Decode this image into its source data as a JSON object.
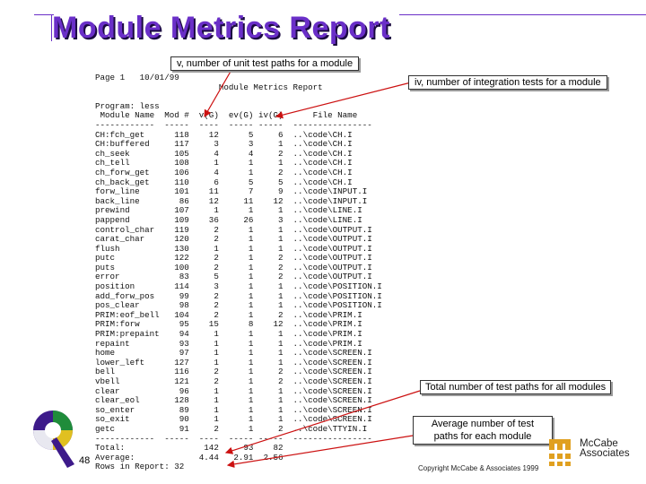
{
  "slide": {
    "title": "Module Metrics Report",
    "page_number": "48",
    "copyright": "Copyright McCabe & Associates 1999",
    "logo_text_1": "McCabe",
    "logo_text_2": "Associates",
    "colors": {
      "title": "#6a2fc8",
      "arrow": "#cc1111"
    }
  },
  "callouts": {
    "v": "v, number of unit test paths for a module",
    "iv": "iv, number of integration tests for a module",
    "total": "Total number of test paths for all modules",
    "average": "Average number of test paths for each module"
  },
  "report": {
    "lines": [
      "Page 1   10/01/99",
      "                         Module Metrics Report",
      "",
      "Program: less",
      " Module Name  Mod #  v(G)  ev(G) iv(G)      File Name",
      "------------  -----  ----  ----- -----  ----------------",
      "CH:fch_get      118    12      5     6  ..\\code\\CH.I",
      "CH:buffered     117     3      3     1  ..\\code\\CH.I",
      "ch_seek         105     4      4     2  ..\\code\\CH.I",
      "ch_tell         108     1      1     1  ..\\code\\CH.I",
      "ch_forw_get     106     4      1     2  ..\\code\\CH.I",
      "ch_back_get     110     6      5     5  ..\\code\\CH.I",
      "forw_line       101    11      7     9  ..\\code\\INPUT.I",
      "back_line        86    12     11    12  ..\\code\\INPUT.I",
      "prewind         107     1      1     1  ..\\code\\LINE.I",
      "pappend         109    36     26     3  ..\\code\\LINE.I",
      "control_char    119     2      1     1  ..\\code\\OUTPUT.I",
      "carat_char      120     2      1     1  ..\\code\\OUTPUT.I",
      "flush           130     1      1     1  ..\\code\\OUTPUT.I",
      "putc            122     2      1     2  ..\\code\\OUTPUT.I",
      "puts            100     2      1     2  ..\\code\\OUTPUT.I",
      "error            83     5      1     2  ..\\code\\OUTPUT.I",
      "position        114     3      1     1  ..\\code\\POSITION.I",
      "add_forw_pos     99     2      1     1  ..\\code\\POSITION.I",
      "pos_clear        98     2      1     1  ..\\code\\POSITION.I",
      "PRIM:eof_bell   104     2      1     2  ..\\code\\PRIM.I",
      "PRIM:forw        95    15      8    12  ..\\code\\PRIM.I",
      "PRIM:prepaint    94     1      1     1  ..\\code\\PRIM.I",
      "repaint          93     1      1     1  ..\\code\\PRIM.I",
      "home             97     1      1     1  ..\\code\\SCREEN.I",
      "lower_left      127     1      1     1  ..\\code\\SCREEN.I",
      "bell            116     2      1     2  ..\\code\\SCREEN.I",
      "vbell           121     2      1     2  ..\\code\\SCREEN.I",
      "clear            96     1      1     1  ..\\code\\SCREEN.I",
      "clear_eol       128     1      1     1  ..\\code\\SCREEN.I",
      "so_enter         89     1      1     1  ..\\code\\SCREEN.I",
      "so_exit          90     1      1     1  ..\\code\\SCREEN.I",
      "getc             91     2      1     2  ..\\code\\TTYIN.I",
      "------------  -----  ----  ----- -----  ----------------",
      "Total:                142     93    82",
      "Average:             4.44   2.91  2.56",
      "Rows in Report: 32"
    ]
  }
}
